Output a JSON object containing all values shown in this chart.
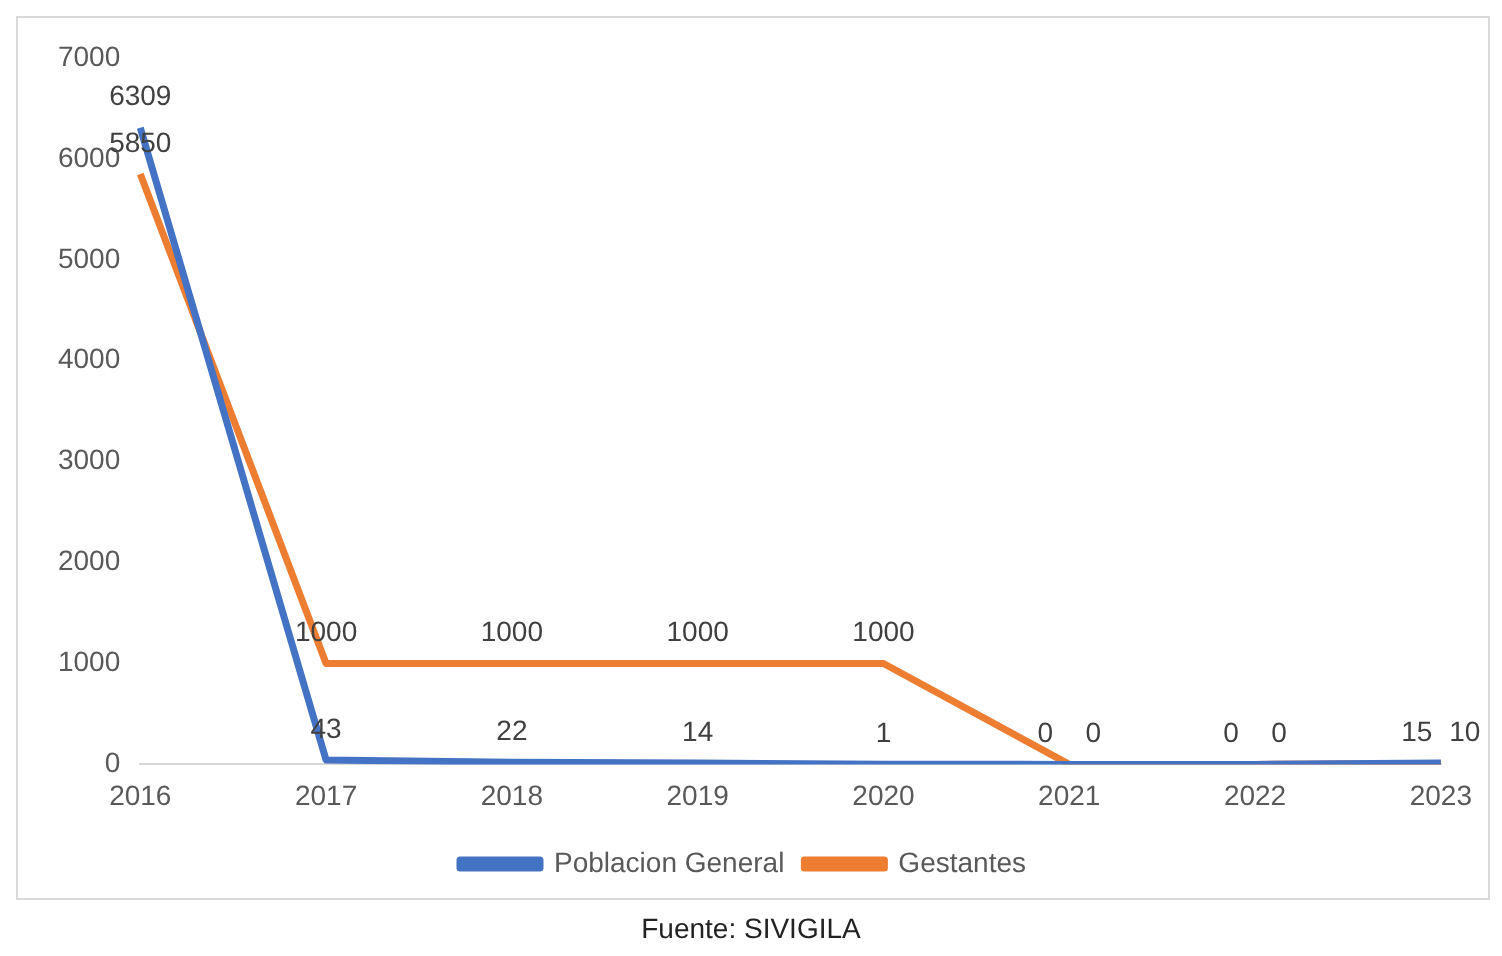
{
  "chart_data": {
    "type": "line",
    "categories": [
      "2016",
      "2017",
      "2018",
      "2019",
      "2020",
      "2021",
      "2022",
      "2023"
    ],
    "series": [
      {
        "name": "Poblacion General",
        "color": "#4472c4",
        "values": [
          6309,
          43,
          22,
          14,
          1,
          0,
          0,
          15
        ]
      },
      {
        "name": "Gestantes",
        "color": "#ed7d31",
        "values": [
          5850,
          1000,
          1000,
          1000,
          1000,
          0,
          0,
          10
        ]
      }
    ],
    "ylim": [
      0,
      7000
    ],
    "yticks": [
      0,
      1000,
      2000,
      3000,
      4000,
      5000,
      6000,
      7000
    ],
    "grid": false,
    "legend": "bottom",
    "data_labels": true,
    "marker": "none",
    "annotations": [
      "Fuente: SIVIGILA"
    ]
  }
}
